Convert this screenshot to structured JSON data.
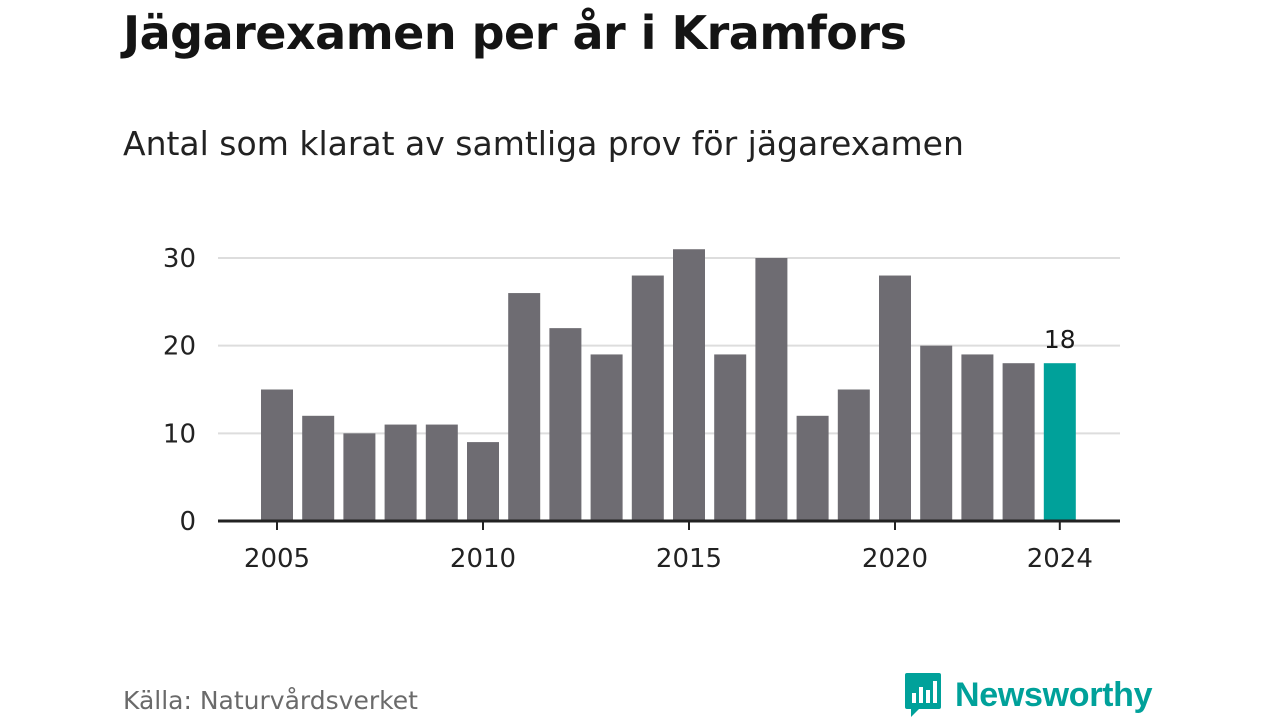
{
  "colors": {
    "bar_default": "#6e6c72",
    "bar_highlight": "#00a19a",
    "grid": "#dddddd",
    "axis": "#222222",
    "brand": "#00a19a"
  },
  "chart_data": {
    "type": "bar",
    "title": "Jägarexamen per år i Kramfors",
    "subtitle": "Antal som klarat av samtliga prov för jägarexamen",
    "categories": [
      2005,
      2006,
      2007,
      2008,
      2009,
      2010,
      2011,
      2012,
      2013,
      2014,
      2015,
      2016,
      2017,
      2018,
      2019,
      2020,
      2021,
      2022,
      2023,
      2024
    ],
    "values": [
      15,
      12,
      10,
      11,
      11,
      9,
      26,
      22,
      19,
      28,
      31,
      19,
      30,
      12,
      15,
      28,
      20,
      19,
      18,
      18
    ],
    "highlight_category": 2024,
    "data_labels": [
      {
        "category": 2024,
        "text": "18"
      }
    ],
    "x_tick_labels": [
      "2005",
      "2010",
      "2015",
      "2020",
      "2024"
    ],
    "y_ticks": [
      0,
      10,
      20,
      30
    ],
    "y_tick_labels": [
      "0",
      "10",
      "20",
      "30"
    ],
    "ylim": [
      0,
      30
    ],
    "xlabel": "",
    "ylabel": "",
    "grid": true,
    "legend": "none"
  },
  "footer": {
    "source": "Källa: Naturvårdsverket",
    "brand": "Newsworthy",
    "brand_icon": "newsworthy-logo-icon"
  }
}
